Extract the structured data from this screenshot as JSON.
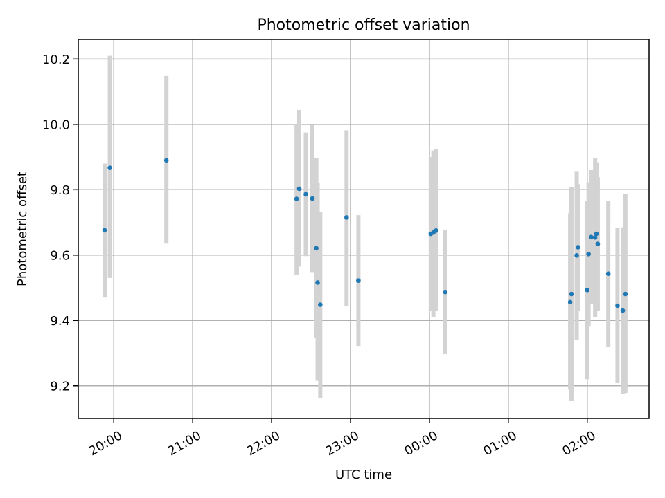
{
  "chart_data": {
    "type": "scatter",
    "title": "Photometric offset variation",
    "xlabel": "UTC time",
    "ylabel": "Photometric offset",
    "x_axis": "time",
    "xlim": [
      "19:33",
      "02:47"
    ],
    "ylim": [
      9.1,
      10.26
    ],
    "xticks": [
      {
        "time": "20:00",
        "label": "20:00"
      },
      {
        "time": "21:00",
        "label": "21:00"
      },
      {
        "time": "22:00",
        "label": "22:00"
      },
      {
        "time": "23:00",
        "label": "23:00"
      },
      {
        "time": "00:00",
        "label": "00:00"
      },
      {
        "time": "01:00",
        "label": "01:00"
      },
      {
        "time": "02:00",
        "label": "02:00"
      }
    ],
    "yticks": [
      9.2,
      9.4,
      9.6,
      9.8,
      10.0,
      10.2
    ],
    "ytick_labels": [
      "9.2",
      "9.4",
      "9.6",
      "9.8",
      "10.0",
      "10.2"
    ],
    "grid": true,
    "marker_color": "#1f77b4",
    "errorbar_color": "#d3d3d3",
    "points": [
      {
        "time": "19:53",
        "y": 9.676,
        "ylow": 9.47,
        "yhigh": 9.88
      },
      {
        "time": "19:57",
        "y": 9.867,
        "ylow": 9.53,
        "yhigh": 10.21
      },
      {
        "time": "20:40",
        "y": 9.89,
        "ylow": 9.635,
        "yhigh": 10.148
      },
      {
        "time": "22:19",
        "y": 9.772,
        "ylow": 9.54,
        "yhigh": 10.0
      },
      {
        "time": "22:21",
        "y": 9.803,
        "ylow": 9.565,
        "yhigh": 10.044
      },
      {
        "time": "22:26",
        "y": 9.786,
        "ylow": 9.597,
        "yhigh": 9.975
      },
      {
        "time": "22:31",
        "y": 9.773,
        "ylow": 9.548,
        "yhigh": 9.998
      },
      {
        "time": "22:34",
        "y": 9.621,
        "ylow": 9.348,
        "yhigh": 9.896
      },
      {
        "time": "22:35",
        "y": 9.516,
        "ylow": 9.215,
        "yhigh": 9.82
      },
      {
        "time": "22:37",
        "y": 9.448,
        "ylow": 9.163,
        "yhigh": 9.733
      },
      {
        "time": "22:57",
        "y": 9.715,
        "ylow": 9.443,
        "yhigh": 9.982
      },
      {
        "time": "23:06",
        "y": 9.522,
        "ylow": 9.322,
        "yhigh": 9.722
      },
      {
        "time": "00:01",
        "y": 9.665,
        "ylow": 9.43,
        "yhigh": 9.9
      },
      {
        "time": "00:03",
        "y": 9.669,
        "ylow": 9.41,
        "yhigh": 9.92
      },
      {
        "time": "00:05",
        "y": 9.675,
        "ylow": 9.43,
        "yhigh": 9.924
      },
      {
        "time": "00:12",
        "y": 9.487,
        "ylow": 9.297,
        "yhigh": 9.677
      },
      {
        "time": "01:47",
        "y": 9.456,
        "ylow": 9.188,
        "yhigh": 9.728
      },
      {
        "time": "01:48",
        "y": 9.481,
        "ylow": 9.153,
        "yhigh": 9.809
      },
      {
        "time": "01:52",
        "y": 9.599,
        "ylow": 9.34,
        "yhigh": 9.857
      },
      {
        "time": "01:53",
        "y": 9.624,
        "ylow": 9.43,
        "yhigh": 9.817
      },
      {
        "time": "02:00",
        "y": 9.493,
        "ylow": 9.22,
        "yhigh": 9.765
      },
      {
        "time": "02:01",
        "y": 9.603,
        "ylow": 9.381,
        "yhigh": 9.823
      },
      {
        "time": "02:03",
        "y": 9.655,
        "ylow": 9.45,
        "yhigh": 9.86
      },
      {
        "time": "02:06",
        "y": 9.654,
        "ylow": 9.41,
        "yhigh": 9.897
      },
      {
        "time": "02:07",
        "y": 9.665,
        "ylow": 9.43,
        "yhigh": 9.884
      },
      {
        "time": "02:08",
        "y": 9.634,
        "ylow": 9.43,
        "yhigh": 9.838
      },
      {
        "time": "02:16",
        "y": 9.543,
        "ylow": 9.32,
        "yhigh": 9.766
      },
      {
        "time": "02:23",
        "y": 9.445,
        "ylow": 9.208,
        "yhigh": 9.682
      },
      {
        "time": "02:27",
        "y": 9.43,
        "ylow": 9.175,
        "yhigh": 9.685
      },
      {
        "time": "02:29",
        "y": 9.481,
        "ylow": 9.178,
        "yhigh": 9.788
      }
    ]
  }
}
